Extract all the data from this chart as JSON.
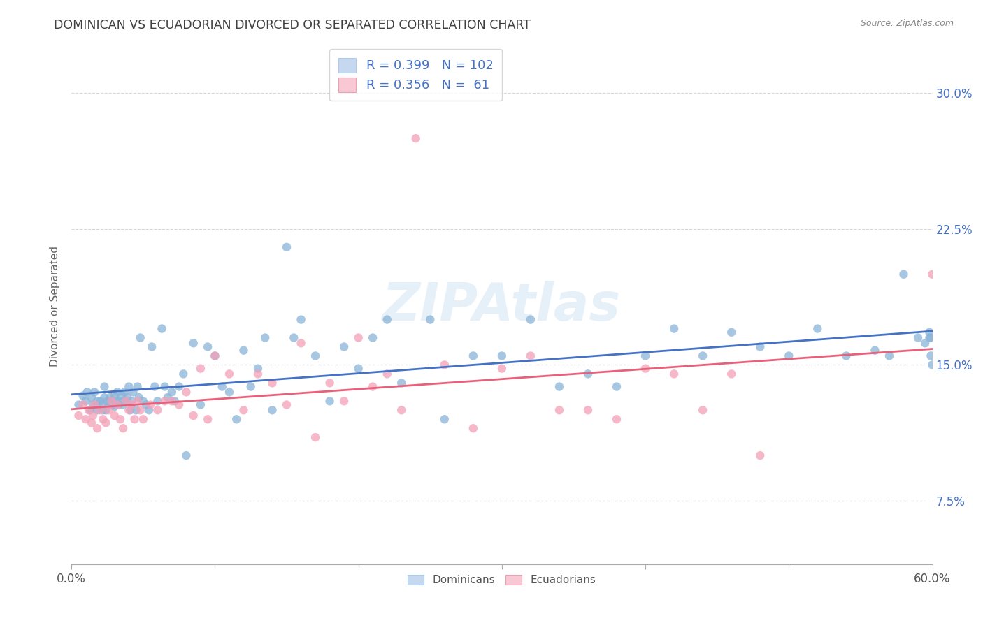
{
  "title": "DOMINICAN VS ECUADORIAN DIVORCED OR SEPARATED CORRELATION CHART",
  "source": "Source: ZipAtlas.com",
  "ylabel": "Divorced or Separated",
  "xmin": 0.0,
  "xmax": 0.6,
  "ymin": 0.04,
  "ymax": 0.325,
  "dominican_color": "#8ab4d8",
  "ecuadorian_color": "#f4a0b8",
  "line_dominican": "#4472c4",
  "line_ecuadorian": "#e8607a",
  "R_dominican": 0.399,
  "N_dominican": 102,
  "R_ecuadorian": 0.356,
  "N_ecuadorian": 61,
  "watermark": "ZIPAtlas",
  "legend_blue_color": "#c5d8f0",
  "legend_pink_color": "#f8c8d4",
  "ytick_vals": [
    0.075,
    0.15,
    0.225,
    0.3
  ],
  "ytick_labels": [
    "7.5%",
    "15.0%",
    "22.5%",
    "30.0%"
  ],
  "dominican_x": [
    0.005,
    0.008,
    0.01,
    0.011,
    0.013,
    0.014,
    0.015,
    0.016,
    0.018,
    0.018,
    0.02,
    0.021,
    0.022,
    0.023,
    0.023,
    0.024,
    0.025,
    0.026,
    0.027,
    0.028,
    0.029,
    0.03,
    0.03,
    0.031,
    0.032,
    0.033,
    0.034,
    0.035,
    0.036,
    0.037,
    0.038,
    0.039,
    0.04,
    0.041,
    0.042,
    0.043,
    0.045,
    0.046,
    0.047,
    0.048,
    0.05,
    0.052,
    0.054,
    0.056,
    0.058,
    0.06,
    0.063,
    0.065,
    0.067,
    0.07,
    0.072,
    0.075,
    0.078,
    0.08,
    0.085,
    0.09,
    0.095,
    0.1,
    0.105,
    0.11,
    0.115,
    0.12,
    0.125,
    0.13,
    0.135,
    0.14,
    0.15,
    0.155,
    0.16,
    0.17,
    0.18,
    0.19,
    0.2,
    0.21,
    0.22,
    0.23,
    0.25,
    0.26,
    0.28,
    0.3,
    0.32,
    0.34,
    0.36,
    0.38,
    0.4,
    0.42,
    0.44,
    0.46,
    0.48,
    0.5,
    0.52,
    0.54,
    0.56,
    0.57,
    0.58,
    0.59,
    0.595,
    0.598,
    0.598,
    0.599,
    0.599,
    0.6
  ],
  "dominican_y": [
    0.128,
    0.133,
    0.13,
    0.135,
    0.125,
    0.132,
    0.128,
    0.135,
    0.13,
    0.125,
    0.13,
    0.128,
    0.125,
    0.138,
    0.132,
    0.125,
    0.13,
    0.128,
    0.132,
    0.13,
    0.128,
    0.133,
    0.127,
    0.13,
    0.135,
    0.128,
    0.13,
    0.133,
    0.128,
    0.135,
    0.13,
    0.132,
    0.138,
    0.125,
    0.13,
    0.135,
    0.125,
    0.138,
    0.132,
    0.165,
    0.13,
    0.128,
    0.125,
    0.16,
    0.138,
    0.13,
    0.17,
    0.138,
    0.132,
    0.135,
    0.13,
    0.138,
    0.145,
    0.1,
    0.162,
    0.128,
    0.16,
    0.155,
    0.138,
    0.135,
    0.12,
    0.158,
    0.138,
    0.148,
    0.165,
    0.125,
    0.215,
    0.165,
    0.175,
    0.155,
    0.13,
    0.16,
    0.148,
    0.165,
    0.175,
    0.14,
    0.175,
    0.12,
    0.155,
    0.155,
    0.175,
    0.138,
    0.145,
    0.138,
    0.155,
    0.17,
    0.155,
    0.168,
    0.16,
    0.155,
    0.17,
    0.155,
    0.158,
    0.155,
    0.2,
    0.165,
    0.162,
    0.165,
    0.168,
    0.155,
    0.165,
    0.15
  ],
  "ecuadorian_x": [
    0.005,
    0.008,
    0.01,
    0.012,
    0.014,
    0.015,
    0.016,
    0.018,
    0.02,
    0.022,
    0.024,
    0.026,
    0.028,
    0.03,
    0.032,
    0.034,
    0.036,
    0.038,
    0.04,
    0.042,
    0.044,
    0.046,
    0.048,
    0.05,
    0.055,
    0.06,
    0.065,
    0.07,
    0.075,
    0.08,
    0.085,
    0.09,
    0.095,
    0.1,
    0.11,
    0.12,
    0.13,
    0.14,
    0.15,
    0.16,
    0.17,
    0.18,
    0.19,
    0.2,
    0.21,
    0.22,
    0.23,
    0.24,
    0.26,
    0.28,
    0.3,
    0.32,
    0.34,
    0.36,
    0.38,
    0.4,
    0.42,
    0.44,
    0.46,
    0.48,
    0.6
  ],
  "ecuadorian_y": [
    0.122,
    0.128,
    0.12,
    0.125,
    0.118,
    0.122,
    0.128,
    0.115,
    0.125,
    0.12,
    0.118,
    0.125,
    0.13,
    0.122,
    0.128,
    0.12,
    0.115,
    0.13,
    0.125,
    0.128,
    0.12,
    0.13,
    0.125,
    0.12,
    0.128,
    0.125,
    0.13,
    0.13,
    0.128,
    0.135,
    0.122,
    0.148,
    0.12,
    0.155,
    0.145,
    0.125,
    0.145,
    0.14,
    0.128,
    0.162,
    0.11,
    0.14,
    0.13,
    0.165,
    0.138,
    0.145,
    0.125,
    0.275,
    0.15,
    0.115,
    0.148,
    0.155,
    0.125,
    0.125,
    0.12,
    0.148,
    0.145,
    0.125,
    0.145,
    0.1,
    0.2
  ]
}
